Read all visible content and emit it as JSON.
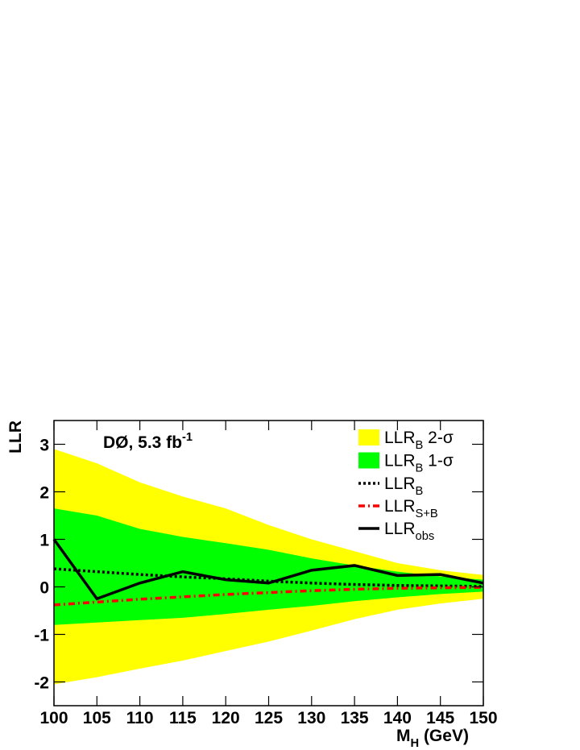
{
  "chart_data": {
    "type": "line",
    "annotation": [
      "DØ, 5.3 fb",
      "-1"
    ],
    "xlabel": [
      "M",
      "H",
      " (GeV)"
    ],
    "ylabel": "LLR",
    "x": [
      100,
      105,
      110,
      115,
      120,
      125,
      130,
      135,
      140,
      145,
      150
    ],
    "xlim": [
      100,
      150
    ],
    "xticks": [
      100,
      105,
      110,
      115,
      120,
      125,
      130,
      135,
      140,
      145,
      150
    ],
    "ylim": [
      -2.5,
      3.5
    ],
    "yticks": [
      -2,
      -1,
      0,
      1,
      2,
      3
    ],
    "bands": [
      {
        "name": [
          "LLR",
          "B",
          " 2-σ"
        ],
        "color": "#ffff00",
        "upper": [
          2.9,
          2.6,
          2.2,
          1.9,
          1.65,
          1.3,
          1.0,
          0.75,
          0.5,
          0.35,
          0.25
        ],
        "lower": [
          -2.05,
          -1.9,
          -1.72,
          -1.55,
          -1.35,
          -1.15,
          -0.92,
          -0.68,
          -0.48,
          -0.35,
          -0.25
        ]
      },
      {
        "name": [
          "LLR",
          "B",
          " 1-σ"
        ],
        "color": "#00ff00",
        "upper": [
          1.65,
          1.5,
          1.22,
          1.05,
          0.92,
          0.78,
          0.6,
          0.45,
          0.32,
          0.22,
          0.15
        ],
        "lower": [
          -0.8,
          -0.75,
          -0.7,
          -0.65,
          -0.57,
          -0.48,
          -0.4,
          -0.3,
          -0.22,
          -0.15,
          -0.1
        ]
      }
    ],
    "series": [
      {
        "name": [
          "LLR",
          "B"
        ],
        "color": "#000000",
        "dash": "dotted",
        "values": [
          0.38,
          0.32,
          0.26,
          0.21,
          0.17,
          0.12,
          0.08,
          0.05,
          0.03,
          0.02,
          0.01
        ]
      },
      {
        "name": [
          "LLR",
          "S+B"
        ],
        "color": "#ff0000",
        "dash": "dashdot",
        "values": [
          -0.38,
          -0.32,
          -0.26,
          -0.21,
          -0.16,
          -0.12,
          -0.08,
          -0.05,
          -0.03,
          -0.02,
          -0.01
        ]
      },
      {
        "name": [
          "LLR",
          "obs"
        ],
        "color": "#000000",
        "dash": "solid",
        "values": [
          1.0,
          -0.25,
          0.08,
          0.32,
          0.15,
          0.08,
          0.35,
          0.45,
          0.24,
          0.26,
          0.08
        ]
      }
    ]
  }
}
